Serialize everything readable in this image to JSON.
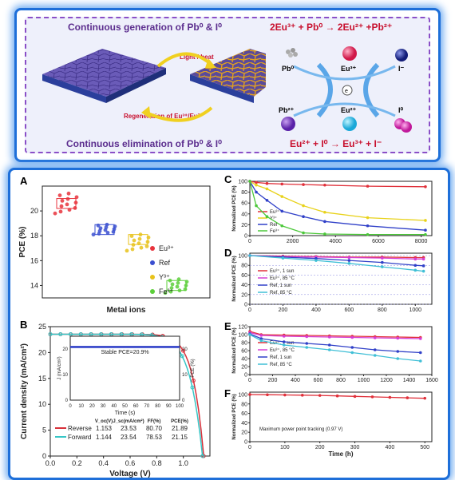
{
  "top": {
    "left_title": "Continuous generation of Pb⁰ & I⁰",
    "left_bottom": "Continuous elimination of Pb⁰ & I⁰",
    "arrow_top": "Light / heat",
    "arrow_bottom": "Regeneration of Eu³⁺/Eu²⁺",
    "eq_top": "2Eu³⁺ + Pb⁰ → 2Eu²⁺ +Pb²⁺",
    "eq_bottom": "Eu²⁺ + I⁰ → Eu³⁺ + I⁻",
    "species": {
      "pb0": "Pb⁰",
      "eu3": "Eu³⁺",
      "i_minus": "I⁻",
      "pb2": "Pb²⁺",
      "eu2": "Eu²⁺",
      "i0": "I⁰"
    },
    "colors": {
      "title": "#5b2d8e",
      "equation": "#c8102e",
      "eu3": "#e0245e",
      "i_minus": "#1c2a8c",
      "pb2": "#7b3fc4",
      "eu2": "#22c4e8",
      "i0": "#e03cb4"
    }
  },
  "panels": {
    "A": "A",
    "B": "B",
    "C": "C",
    "D": "D",
    "E": "E",
    "F": "F"
  },
  "chart_data": [
    {
      "panel": "A",
      "type": "scatter",
      "xlabel": "Metal ions",
      "ylabel": "PCE (%)",
      "ylim": [
        13,
        22
      ],
      "yticks": [
        14,
        16,
        18,
        20
      ],
      "series": [
        {
          "name": "Eu³⁺",
          "color": "#e8333c",
          "mean": 20.6,
          "min": 19.8,
          "max": 21.4
        },
        {
          "name": "Ref",
          "color": "#3a4fd0",
          "mean": 18.5,
          "min": 18.1,
          "max": 18.9
        },
        {
          "name": "Y³⁺",
          "color": "#e8c21a",
          "mean": 17.9,
          "min": 16.8,
          "max": 18.1
        },
        {
          "name": "Fe³⁺",
          "color": "#5ccf3a",
          "mean": 14.0,
          "min": 13.4,
          "max": 14.5
        }
      ]
    },
    {
      "panel": "B",
      "type": "line",
      "xlabel": "Voltage (V)",
      "ylabel": "Current density (mA/cm²)",
      "xlim": [
        0,
        1.2
      ],
      "ylim": [
        0,
        25
      ],
      "xticks": [
        "0.0",
        "0.2",
        "0.4",
        "0.6",
        "0.8",
        "1.0"
      ],
      "yticks": [
        "0",
        "5",
        "10",
        "15",
        "20",
        "25"
      ],
      "series": [
        {
          "name": "Reverse",
          "color": "#d8303a",
          "voc": "1.153",
          "jsc": "23.53",
          "ff": "80.70",
          "pce": "21.89"
        },
        {
          "name": "Forward",
          "color": "#36c6c6",
          "voc": "1.144",
          "jsc": "23.54",
          "ff": "78.53",
          "pce": "21.15"
        }
      ],
      "table_header": [
        "V_oc(V)",
        "J_sc(mA/cm²)",
        "FF(%)",
        "PCE(%)"
      ],
      "inset": {
        "text": "Stable PCE=20.9%",
        "xlabel": "Time (s)",
        "ylabel_left": "J (mA/cm²)",
        "ylabel_right": "PCE (%)",
        "xticks": [
          "0",
          "10",
          "20",
          "30",
          "40",
          "50",
          "60",
          "70",
          "80",
          "90",
          "100"
        ],
        "yticks_left": [
          "0",
          "10",
          "20"
        ],
        "yticks_right": [
          "0",
          "10",
          "20"
        ],
        "j": 20.9,
        "pce": 20.9
      }
    },
    {
      "panel": "C",
      "type": "line",
      "ylabel": "Normalized PCE (%)",
      "xlim": [
        0,
        8500
      ],
      "ylim": [
        0,
        100
      ],
      "xticks": [
        "0",
        "2000",
        "4000",
        "6000",
        "8000"
      ],
      "yticks": [
        "0",
        "20",
        "40",
        "60",
        "80",
        "100"
      ],
      "series": [
        {
          "name": "Eu³⁺",
          "color": "#e0303a",
          "x": [
            0,
            300,
            800,
            1500,
            2500,
            3500,
            5500,
            8200
          ],
          "y": [
            100,
            98,
            96,
            95,
            94,
            93,
            91,
            90
          ]
        },
        {
          "name": "Y³⁺",
          "color": "#e8d21a",
          "x": [
            0,
            300,
            800,
            1500,
            2500,
            3500,
            5500,
            8200
          ],
          "y": [
            100,
            93,
            86,
            72,
            55,
            43,
            33,
            28
          ]
        },
        {
          "name": "Ref",
          "color": "#3040c8",
          "x": [
            0,
            300,
            800,
            1500,
            2500,
            3500,
            5500,
            8200
          ],
          "y": [
            100,
            80,
            65,
            45,
            35,
            26,
            18,
            10
          ]
        },
        {
          "name": "Fe³⁺",
          "color": "#4cc83a",
          "x": [
            0,
            300,
            800,
            1500,
            2500,
            3500,
            5500,
            8200
          ],
          "y": [
            100,
            55,
            35,
            18,
            5,
            3,
            2,
            2
          ]
        }
      ]
    },
    {
      "panel": "D",
      "type": "line",
      "ylabel": "Normalized PCE (%)",
      "xlim": [
        0,
        1100
      ],
      "ylim": [
        0,
        105
      ],
      "xticks": [
        "0",
        "200",
        "400",
        "600",
        "800",
        "1000"
      ],
      "yticks": [
        "0",
        "20",
        "40",
        "60",
        "80",
        "100"
      ],
      "series": [
        {
          "name": "Eu³⁺, 1 sun",
          "color": "#e0303a",
          "x": [
            0,
            200,
            400,
            600,
            800,
            1000,
            1050
          ],
          "y": [
            100,
            99,
            98,
            97,
            97,
            96,
            96
          ]
        },
        {
          "name": "Eu³⁺, 85 °C",
          "color": "#d63fd6",
          "x": [
            0,
            200,
            400,
            600,
            800,
            1000,
            1050
          ],
          "y": [
            100,
            98,
            97,
            96,
            95,
            93,
            93
          ]
        },
        {
          "name": "Ref, 1 sun",
          "color": "#3040c8",
          "x": [
            0,
            200,
            400,
            600,
            800,
            1000,
            1050
          ],
          "y": [
            100,
            97,
            94,
            90,
            86,
            80,
            79
          ]
        },
        {
          "name": "Ref, 85 °C",
          "color": "#3fbfd6",
          "x": [
            0,
            200,
            400,
            600,
            800,
            1000,
            1050
          ],
          "y": [
            100,
            95,
            90,
            84,
            77,
            70,
            68
          ]
        }
      ]
    },
    {
      "panel": "E",
      "type": "line",
      "ylabel": "Normalized PCE (%)",
      "xlim": [
        0,
        1600
      ],
      "ylim": [
        0,
        120
      ],
      "xticks": [
        "0",
        "200",
        "400",
        "600",
        "800",
        "1000",
        "1200",
        "1400",
        "1600"
      ],
      "yticks": [
        "0",
        "20",
        "40",
        "60",
        "80",
        "100",
        "120"
      ],
      "series": [
        {
          "name": "Eu³⁺, 1 sun",
          "color": "#e0303a",
          "x": [
            0,
            100,
            300,
            500,
            700,
            900,
            1100,
            1300,
            1500
          ],
          "y": [
            108,
            100,
            99,
            98,
            97,
            96,
            95,
            94,
            93
          ]
        },
        {
          "name": "Eu³⁺, 85 °C",
          "color": "#d63fd6",
          "x": [
            0,
            100,
            300,
            500,
            700,
            900,
            1100,
            1300,
            1500
          ],
          "y": [
            105,
            98,
            96,
            95,
            94,
            93,
            92,
            91,
            90
          ]
        },
        {
          "name": "Ref, 1 sun",
          "color": "#3040c8",
          "x": [
            0,
            100,
            300,
            500,
            700,
            900,
            1100,
            1300,
            1500
          ],
          "y": [
            102,
            90,
            82,
            78,
            74,
            68,
            62,
            58,
            55
          ]
        },
        {
          "name": "Ref, 85 °C",
          "color": "#3fbfd6",
          "x": [
            0,
            100,
            300,
            500,
            700,
            900,
            1100,
            1300,
            1500
          ],
          "y": [
            100,
            85,
            74,
            68,
            62,
            55,
            48,
            40,
            34
          ]
        }
      ]
    },
    {
      "panel": "F",
      "type": "line",
      "xlabel": "Time (h)",
      "ylabel": "Normalized PCE (%)",
      "xlim": [
        0,
        520
      ],
      "ylim": [
        0,
        105
      ],
      "xticks": [
        "0",
        "100",
        "200",
        "300",
        "400",
        "500"
      ],
      "yticks": [
        "0",
        "20",
        "40",
        "60",
        "80",
        "100"
      ],
      "annotation": "Maximum power point tracking (0.97 V)",
      "series": [
        {
          "color": "#e0303a",
          "x": [
            0,
            50,
            100,
            150,
            200,
            250,
            300,
            350,
            400,
            450,
            500
          ],
          "y": [
            100,
            99.5,
            99,
            98.5,
            98,
            97,
            96,
            95,
            94,
            93,
            92
          ]
        }
      ]
    }
  ]
}
